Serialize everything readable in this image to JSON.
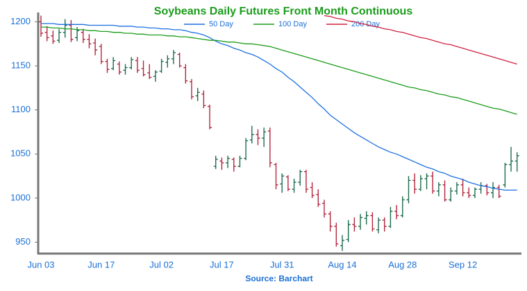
{
  "chart_data": {
    "type": "ohlc",
    "title": "Soybeans Daily Futures Front Month Continuous",
    "source": "Source: Barchart",
    "categories": [
      "Jun 03",
      null,
      null,
      null,
      null,
      null,
      null,
      null,
      null,
      null,
      "Jun 17",
      null,
      null,
      null,
      null,
      null,
      null,
      null,
      null,
      null,
      "Jul 02",
      null,
      null,
      null,
      null,
      null,
      null,
      null,
      null,
      null,
      "Jul 17",
      null,
      null,
      null,
      null,
      null,
      null,
      null,
      null,
      null,
      "Jul 31",
      null,
      null,
      null,
      null,
      null,
      null,
      null,
      null,
      null,
      "Aug 14",
      null,
      null,
      null,
      null,
      null,
      null,
      null,
      null,
      null,
      "Aug 28",
      null,
      null,
      null,
      null,
      null,
      null,
      null,
      null,
      null,
      "Sep 12",
      null,
      null,
      null,
      null,
      null,
      null,
      null,
      null,
      null
    ],
    "ohlc": {
      "up_color": "#1b6b4c",
      "down_color": "#b3253d",
      "open": [
        1200,
        1188,
        1184,
        1179,
        1188,
        1196,
        1182,
        1188,
        1180,
        1176,
        1172,
        1155,
        1147,
        1152,
        1145,
        1148,
        1156,
        1147,
        1142,
        1138,
        1144,
        1154,
        1158,
        1163,
        1148,
        1132,
        1116,
        1118,
        1104,
        1036,
        1042,
        1040,
        1044,
        1036,
        1045,
        1066,
        1072,
        1068,
        1076,
        1038,
        1016,
        1024,
        1010,
        1018,
        1030,
        1012,
        1004,
        994,
        982,
        968,
        946,
        953,
        970,
        968,
        977,
        980,
        964,
        975,
        968,
        985,
        980,
        998,
        1020,
        1010,
        1022,
        1025,
        1008,
        1015,
        998,
        1008,
        1015,
        1006,
        1003,
        1010,
        1014,
        1006,
        1012,
        1015,
        1038,
        1042
      ],
      "high": [
        1207,
        1195,
        1190,
        1192,
        1203,
        1202,
        1194,
        1192,
        1186,
        1181,
        1175,
        1158,
        1160,
        1155,
        1152,
        1160,
        1160,
        1156,
        1152,
        1145,
        1158,
        1162,
        1168,
        1165,
        1152,
        1135,
        1125,
        1122,
        1106,
        1048,
        1046,
        1048,
        1046,
        1048,
        1068,
        1082,
        1078,
        1080,
        1080,
        1040,
        1028,
        1026,
        1022,
        1032,
        1032,
        1018,
        1010,
        998,
        985,
        972,
        958,
        975,
        978,
        982,
        985,
        984,
        978,
        978,
        990,
        992,
        1002,
        1025,
        1028,
        1026,
        1028,
        1030,
        1018,
        1020,
        1012,
        1018,
        1022,
        1012,
        1012,
        1018,
        1016,
        1018,
        1015,
        1040,
        1058,
        1052
      ],
      "low": [
        1183,
        1178,
        1175,
        1176,
        1182,
        1177,
        1178,
        1176,
        1170,
        1162,
        1152,
        1142,
        1145,
        1140,
        1140,
        1146,
        1142,
        1138,
        1135,
        1132,
        1142,
        1148,
        1152,
        1148,
        1130,
        1112,
        1110,
        1102,
        1078,
        1033,
        1032,
        1034,
        1030,
        1035,
        1043,
        1062,
        1060,
        1058,
        1035,
        1010,
        1006,
        1008,
        1006,
        1014,
        1006,
        1000,
        990,
        978,
        962,
        945,
        940,
        950,
        962,
        964,
        970,
        962,
        960,
        962,
        966,
        976,
        978,
        994,
        1005,
        1008,
        1010,
        1005,
        1002,
        996,
        996,
        1004,
        1002,
        1000,
        1000,
        1005,
        1003,
        1000,
        1000,
        1012,
        1030,
        1030
      ],
      "close": [
        1187,
        1182,
        1178,
        1188,
        1196,
        1180,
        1190,
        1180,
        1175,
        1168,
        1155,
        1146,
        1156,
        1143,
        1148,
        1157,
        1145,
        1140,
        1137,
        1143,
        1155,
        1158,
        1165,
        1150,
        1133,
        1115,
        1120,
        1105,
        1080,
        1044,
        1040,
        1045,
        1036,
        1045,
        1065,
        1072,
        1068,
        1075,
        1040,
        1015,
        1025,
        1010,
        1018,
        1030,
        1010,
        1003,
        993,
        982,
        968,
        948,
        952,
        970,
        968,
        978,
        980,
        965,
        975,
        968,
        985,
        980,
        998,
        1020,
        1010,
        1022,
        1025,
        1008,
        1015,
        998,
        1008,
        1015,
        1006,
        1003,
        1010,
        1014,
        1006,
        1012,
        1002,
        1038,
        1042,
        1048
      ]
    },
    "series": [
      {
        "name": "50 Day",
        "color": "#1a6fe0",
        "values": [
          1198,
          1198,
          1198,
          1197,
          1197,
          1197,
          1197,
          1197,
          1196,
          1196,
          1196,
          1196,
          1196,
          1195,
          1195,
          1195,
          1194,
          1194,
          1193,
          1193,
          1192,
          1192,
          1191,
          1191,
          1190,
          1188,
          1187,
          1185,
          1182,
          1178,
          1175,
          1173,
          1170,
          1168,
          1165,
          1163,
          1160,
          1156,
          1152,
          1147,
          1143,
          1137,
          1132,
          1126,
          1120,
          1114,
          1107,
          1101,
          1094,
          1089,
          1084,
          1079,
          1074,
          1070,
          1066,
          1062,
          1058,
          1055,
          1052,
          1050,
          1047,
          1044,
          1041,
          1038,
          1035,
          1033,
          1030,
          1028,
          1025,
          1023,
          1021,
          1018,
          1016,
          1014,
          1013,
          1011,
          1010,
          1009,
          1009,
          1009
        ]
      },
      {
        "name": "100 Day",
        "color": "#1a9c1a",
        "values": [
          1194,
          1194,
          1193,
          1193,
          1192,
          1192,
          1191,
          1191,
          1190,
          1190,
          1189,
          1189,
          1188,
          1188,
          1187,
          1187,
          1186,
          1186,
          1185,
          1185,
          1185,
          1184,
          1184,
          1183,
          1183,
          1182,
          1181,
          1180,
          1179,
          1179,
          1178,
          1177,
          1177,
          1176,
          1175,
          1175,
          1174,
          1173,
          1172,
          1170,
          1168,
          1166,
          1164,
          1162,
          1160,
          1158,
          1156,
          1154,
          1152,
          1150,
          1148,
          1146,
          1144,
          1142,
          1140,
          1138,
          1136,
          1134,
          1132,
          1130,
          1128,
          1126,
          1125,
          1123,
          1122,
          1120,
          1118,
          1117,
          1115,
          1114,
          1112,
          1110,
          1108,
          1106,
          1104,
          1102,
          1101,
          1099,
          1097,
          1095
        ]
      },
      {
        "name": "200 Day",
        "color": "#d0203f",
        "values": [
          null,
          null,
          null,
          null,
          null,
          null,
          null,
          null,
          null,
          null,
          null,
          null,
          null,
          null,
          null,
          null,
          null,
          null,
          null,
          null,
          null,
          null,
          null,
          null,
          null,
          null,
          null,
          null,
          null,
          null,
          null,
          null,
          null,
          null,
          null,
          null,
          null,
          null,
          null,
          null,
          null,
          null,
          null,
          null,
          null,
          null,
          null,
          1207,
          1206,
          1204,
          1203,
          1201,
          1200,
          1198,
          1197,
          1195,
          1194,
          1192,
          1191,
          1189,
          1188,
          1186,
          1184,
          1182,
          1181,
          1179,
          1177,
          1175,
          1174,
          1172,
          1170,
          1168,
          1166,
          1164,
          1162,
          1160,
          1158,
          1156,
          1154,
          1152
        ]
      }
    ],
    "ylim": [
      937,
      1209
    ],
    "yticks": [
      950,
      1000,
      1050,
      1100,
      1150,
      1200
    ]
  }
}
